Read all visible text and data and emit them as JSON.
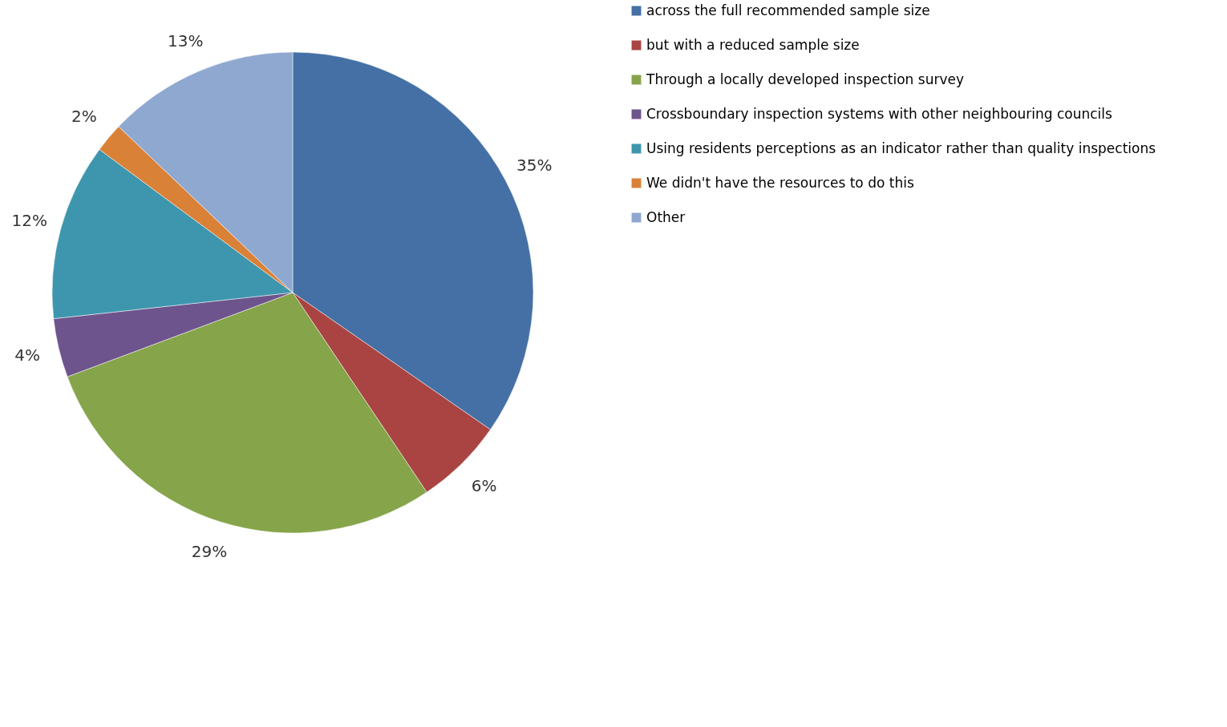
{
  "chart_data": {
    "type": "pie",
    "categories": [
      "across the full recommended sample size",
      "but with a reduced sample size",
      "Through a locally developed inspection survey",
      "Crossboundary inspection systems with other neighbouring councils",
      "Using residents perceptions as an indicator rather than quality inspections",
      "We didn't have the resources to do this",
      "Other"
    ],
    "values": [
      35,
      6,
      29,
      4,
      12,
      2,
      13
    ],
    "value_labels": [
      "35%",
      "6%",
      "29%",
      "4%",
      "12%",
      "2%",
      "13%"
    ],
    "colors": [
      "#4470a5",
      "#a94442",
      "#86a44a",
      "#6e548d",
      "#3d96ae",
      "#da8138",
      "#8fa8d0"
    ],
    "legend": "right"
  }
}
